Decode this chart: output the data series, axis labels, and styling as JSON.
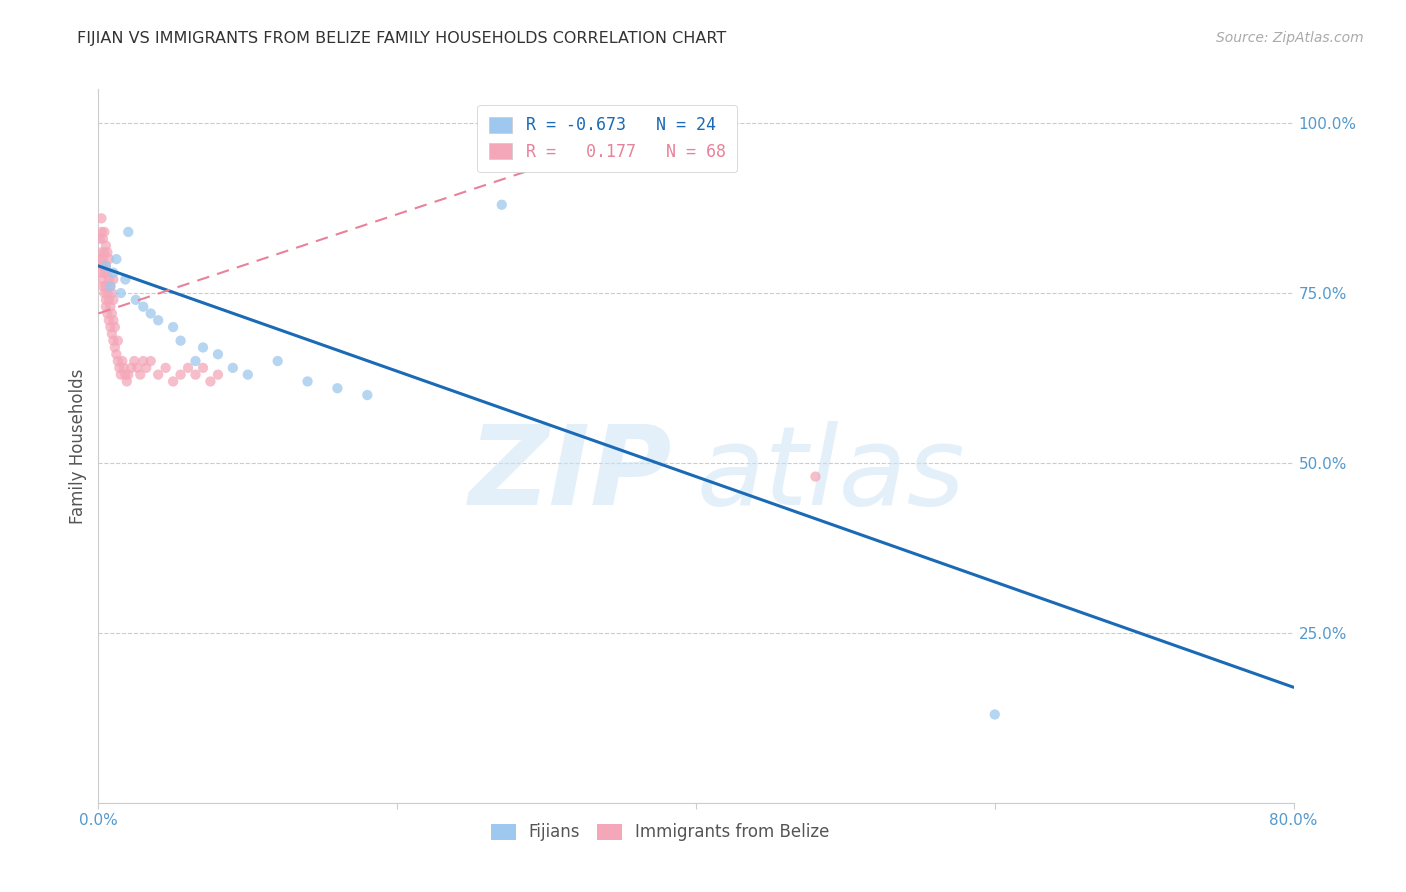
{
  "title": "FIJIAN VS IMMIGRANTS FROM BELIZE FAMILY HOUSEHOLDS CORRELATION CHART",
  "source": "Source: ZipAtlas.com",
  "ylabel": "Family Households",
  "xlim": [
    0.0,
    0.8
  ],
  "ylim": [
    0.0,
    1.05
  ],
  "xticks": [
    0.0,
    0.2,
    0.4,
    0.6,
    0.8
  ],
  "xtick_labels": [
    "0.0%",
    "",
    "",
    "",
    "80.0%"
  ],
  "yticks_right": [
    1.0,
    0.75,
    0.5,
    0.25,
    0.0
  ],
  "ytick_labels_right": [
    "100.0%",
    "75.0%",
    "50.0%",
    "25.0%",
    ""
  ],
  "grid_color": "#cccccc",
  "background_color": "#ffffff",
  "fijian_scatter_x": [
    0.005,
    0.008,
    0.01,
    0.012,
    0.015,
    0.018,
    0.02,
    0.025,
    0.03,
    0.035,
    0.04,
    0.05,
    0.055,
    0.065,
    0.07,
    0.08,
    0.09,
    0.1,
    0.12,
    0.14,
    0.16,
    0.18,
    0.27,
    0.6
  ],
  "fijian_scatter_y": [
    0.79,
    0.76,
    0.78,
    0.8,
    0.75,
    0.77,
    0.84,
    0.74,
    0.73,
    0.72,
    0.71,
    0.7,
    0.68,
    0.65,
    0.67,
    0.66,
    0.64,
    0.63,
    0.65,
    0.62,
    0.61,
    0.6,
    0.88,
    0.13
  ],
  "belize_scatter_x": [
    0.001,
    0.001,
    0.002,
    0.002,
    0.002,
    0.002,
    0.003,
    0.003,
    0.003,
    0.003,
    0.003,
    0.004,
    0.004,
    0.004,
    0.004,
    0.005,
    0.005,
    0.005,
    0.005,
    0.005,
    0.005,
    0.006,
    0.006,
    0.006,
    0.006,
    0.007,
    0.007,
    0.007,
    0.007,
    0.008,
    0.008,
    0.008,
    0.009,
    0.009,
    0.009,
    0.01,
    0.01,
    0.01,
    0.01,
    0.011,
    0.011,
    0.012,
    0.013,
    0.013,
    0.014,
    0.015,
    0.016,
    0.017,
    0.018,
    0.019,
    0.02,
    0.022,
    0.024,
    0.026,
    0.028,
    0.03,
    0.032,
    0.035,
    0.04,
    0.045,
    0.05,
    0.055,
    0.06,
    0.065,
    0.07,
    0.075,
    0.08,
    0.48
  ],
  "belize_scatter_y": [
    0.8,
    0.83,
    0.78,
    0.81,
    0.84,
    0.86,
    0.77,
    0.8,
    0.83,
    0.76,
    0.79,
    0.75,
    0.78,
    0.81,
    0.84,
    0.74,
    0.76,
    0.79,
    0.82,
    0.73,
    0.76,
    0.72,
    0.75,
    0.78,
    0.81,
    0.71,
    0.74,
    0.77,
    0.8,
    0.7,
    0.73,
    0.76,
    0.69,
    0.72,
    0.75,
    0.68,
    0.71,
    0.74,
    0.77,
    0.67,
    0.7,
    0.66,
    0.65,
    0.68,
    0.64,
    0.63,
    0.65,
    0.64,
    0.63,
    0.62,
    0.63,
    0.64,
    0.65,
    0.64,
    0.63,
    0.65,
    0.64,
    0.65,
    0.63,
    0.64,
    0.62,
    0.63,
    0.64,
    0.63,
    0.64,
    0.62,
    0.63,
    0.48
  ],
  "fijian_line_x": [
    0.0,
    0.8
  ],
  "fijian_line_y": [
    0.79,
    0.17
  ],
  "belize_line_x": [
    0.0,
    0.37
  ],
  "belize_line_y": [
    0.72,
    0.99
  ],
  "fijian_line_color": "#1a6ab5",
  "belize_line_color": "#e8829a",
  "fijian_scatter_color": "#9ec8ed",
  "belize_scatter_color": "#f4a7b9",
  "scatter_alpha": 0.75,
  "scatter_size": 55,
  "legend_label_blue": "R = -0.673   N = 24",
  "legend_label_pink": "R =   0.177   N = 68",
  "legend_text_color_blue": "#1a6ab5",
  "legend_text_color_pink": "#e8829a",
  "bottom_legend_label_blue": "Fijians",
  "bottom_legend_label_pink": "Immigrants from Belize",
  "watermark_zip_color": "#cce4f5",
  "watermark_atlas_color": "#cce4f5",
  "title_color": "#333333",
  "source_color": "#aaaaaa",
  "tick_color": "#5599cc",
  "ylabel_color": "#555555"
}
